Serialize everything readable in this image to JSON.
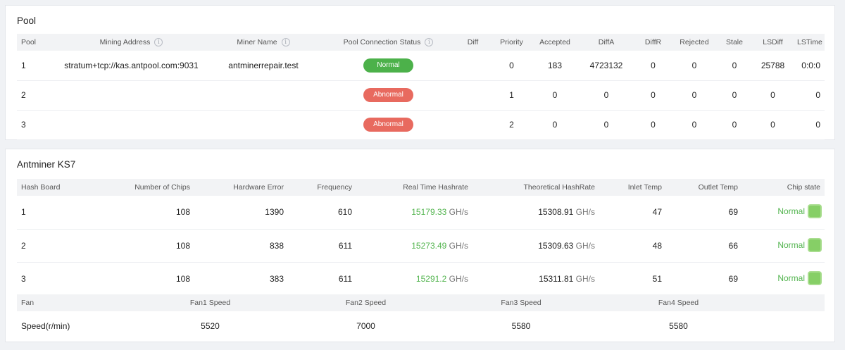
{
  "pool_section": {
    "title": "Pool",
    "columns": [
      "Pool",
      "Mining Address",
      "Miner Name",
      "Pool Connection Status",
      "Diff",
      "Priority",
      "Accepted",
      "DiffA",
      "DiffR",
      "Rejected",
      "Stale",
      "LSDiff",
      "LSTime"
    ],
    "info_icon": "info-icon",
    "rows": [
      {
        "pool": "1",
        "address": "stratum+tcp://kas.antpool.com:9031",
        "miner": "antminerrepair.test",
        "status": "Normal",
        "diff": "",
        "priority": "0",
        "accepted": "183",
        "diffa": "4723132",
        "diffr": "0",
        "rejected": "0",
        "stale": "0",
        "lsdiff": "25788",
        "lstime": "0:0:0"
      },
      {
        "pool": "2",
        "address": "",
        "miner": "",
        "status": "Abnormal",
        "diff": "",
        "priority": "1",
        "accepted": "0",
        "diffa": "0",
        "diffr": "0",
        "rejected": "0",
        "stale": "0",
        "lsdiff": "0",
        "lstime": "0"
      },
      {
        "pool": "3",
        "address": "",
        "miner": "",
        "status": "Abnormal",
        "diff": "",
        "priority": "2",
        "accepted": "0",
        "diffa": "0",
        "diffr": "0",
        "rejected": "0",
        "stale": "0",
        "lsdiff": "0",
        "lstime": "0"
      }
    ],
    "status_colors": {
      "Normal": "#4cb14a",
      "Abnormal": "#e86a5f"
    }
  },
  "miner_section": {
    "title": "Antminer KS7",
    "columns": [
      "Hash Board",
      "Number of Chips",
      "Hardware Error",
      "Frequency",
      "Real Time Hashrate",
      "Theoretical HashRate",
      "Inlet Temp",
      "Outlet Temp",
      "Chip state"
    ],
    "unit": "GH/s",
    "rows": [
      {
        "board": "1",
        "chips": "108",
        "hw_error": "1390",
        "frequency": "610",
        "rt_hashrate": "15179.33",
        "th_hashrate": "15308.91",
        "inlet": "47",
        "outlet": "69",
        "chip_state": "Normal"
      },
      {
        "board": "2",
        "chips": "108",
        "hw_error": "838",
        "frequency": "611",
        "rt_hashrate": "15273.49",
        "th_hashrate": "15309.63",
        "inlet": "48",
        "outlet": "66",
        "chip_state": "Normal"
      },
      {
        "board": "3",
        "chips": "108",
        "hw_error": "383",
        "frequency": "611",
        "rt_hashrate": "15291.2",
        "th_hashrate": "15311.81",
        "inlet": "51",
        "outlet": "69",
        "chip_state": "Normal"
      }
    ],
    "chip_icon": "chip-icon",
    "accent_green": "#52b44e"
  },
  "fan_section": {
    "columns": [
      "Fan",
      "Fan1 Speed",
      "Fan2 Speed",
      "Fan3 Speed",
      "Fan4 Speed"
    ],
    "row_label": "Speed(r/min)",
    "speeds": [
      "5520",
      "7000",
      "5580",
      "5580"
    ]
  }
}
